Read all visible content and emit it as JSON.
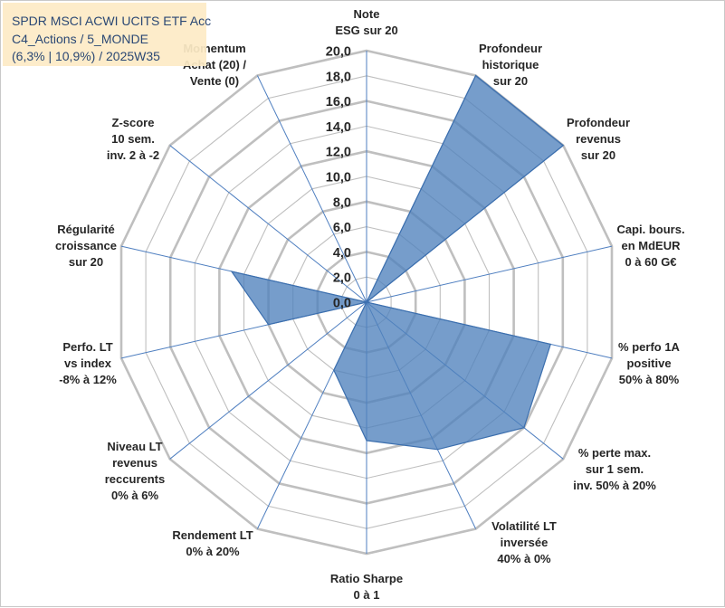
{
  "title_box": {
    "line1": "SPDR MSCI ACWI UCITS ETF Acc",
    "line2": "C4_Actions / 5_MONDE",
    "line3": "(6,3% | 10,9%) / 2025W35"
  },
  "colors": {
    "series_fill": "#4f81bd",
    "series_stroke": "#3c6fae",
    "grid": "#bfbfbf",
    "axis": "#4f7fc0",
    "title_box_bg": "#fdebc6",
    "title_text": "#1a3a6a"
  },
  "chart_data": {
    "type": "radar",
    "title": "",
    "rlim": [
      0,
      20
    ],
    "r_ticks": [
      "0,0",
      "2,0",
      "4,0",
      "6,0",
      "8,0",
      "10,0",
      "12,0",
      "14,0",
      "16,0",
      "18,0",
      "20,0"
    ],
    "grid": true,
    "axes": [
      [
        "Note",
        "ESG sur 20"
      ],
      [
        "Profondeur",
        "historique",
        "sur 20"
      ],
      [
        "Profondeur",
        "revenus",
        "sur 20"
      ],
      [
        "Capi. bours.",
        "en MdEUR",
        "0 à 60 G€"
      ],
      [
        "% perfo 1A",
        "positive",
        "50% à 80%"
      ],
      [
        "% perte max.",
        "sur 1 sem.",
        "inv. 50% à 20%"
      ],
      [
        "Volatilité LT",
        "inversée",
        "40% à 0%"
      ],
      [
        "Ratio Sharpe",
        "0 à 1"
      ],
      [
        "Rendement LT",
        "0% à 20%"
      ],
      [
        "Niveau LT",
        "revenus",
        "reccurents",
        "0% à 6%"
      ],
      [
        "Perfo. LT",
        "vs index",
        "-8% à 12%"
      ],
      [
        "Régularité",
        "croissance",
        "sur 20"
      ],
      [
        "Z-score",
        "10 sem.",
        "inv. 2 à -2"
      ],
      [
        "Momentum",
        "Achat (20) /",
        "Vente (0)"
      ]
    ],
    "series": [
      {
        "values": [
          0,
          20,
          20,
          0,
          15,
          16,
          13,
          11,
          6,
          0,
          8,
          11,
          0,
          0
        ]
      }
    ]
  }
}
